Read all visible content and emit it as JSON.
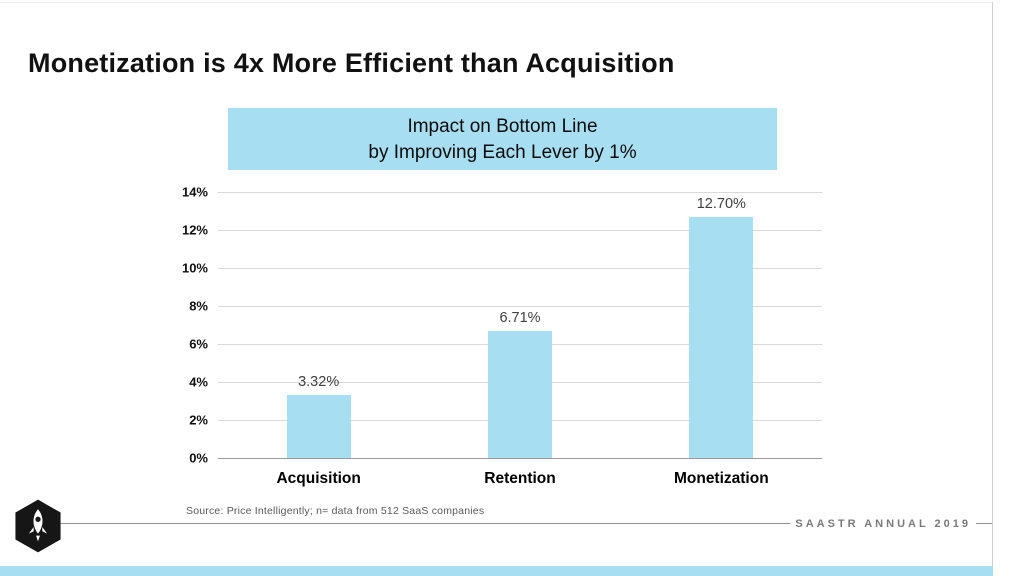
{
  "slide": {
    "title": "Monetization is 4x More Efficient than Acquisition",
    "source_note": "Source: Price Intelligently; n= data from 512 SaaS companies",
    "footer_brand": "SAASTR ANNUAL 2019",
    "logo_icon": "saastr-rocket-hexagon-badge",
    "colors": {
      "accent_blue": "#a8def2",
      "gridline": "#d9d9d9",
      "footer_line": "#8f8f8f",
      "footer_text": "#7a7a7a"
    }
  },
  "chart_data": {
    "type": "bar",
    "title": "Impact on Bottom Line by Improving Each Lever by 1%",
    "title_line1": "Impact on Bottom Line",
    "title_line2": "by Improving Each Lever by 1%",
    "categories": [
      "Acquisition",
      "Retention",
      "Monetization"
    ],
    "values": [
      3.32,
      6.71,
      12.7
    ],
    "value_labels": [
      "3.32%",
      "6.71%",
      "12.70%"
    ],
    "xlabel": "",
    "ylabel": "",
    "ylim": [
      0,
      14
    ],
    "ytick_step": 2,
    "ytick_labels": [
      "0%",
      "2%",
      "4%",
      "6%",
      "8%",
      "10%",
      "12%",
      "14%"
    ],
    "grid": true,
    "legend": "none",
    "bar_color": "#a8def2"
  }
}
